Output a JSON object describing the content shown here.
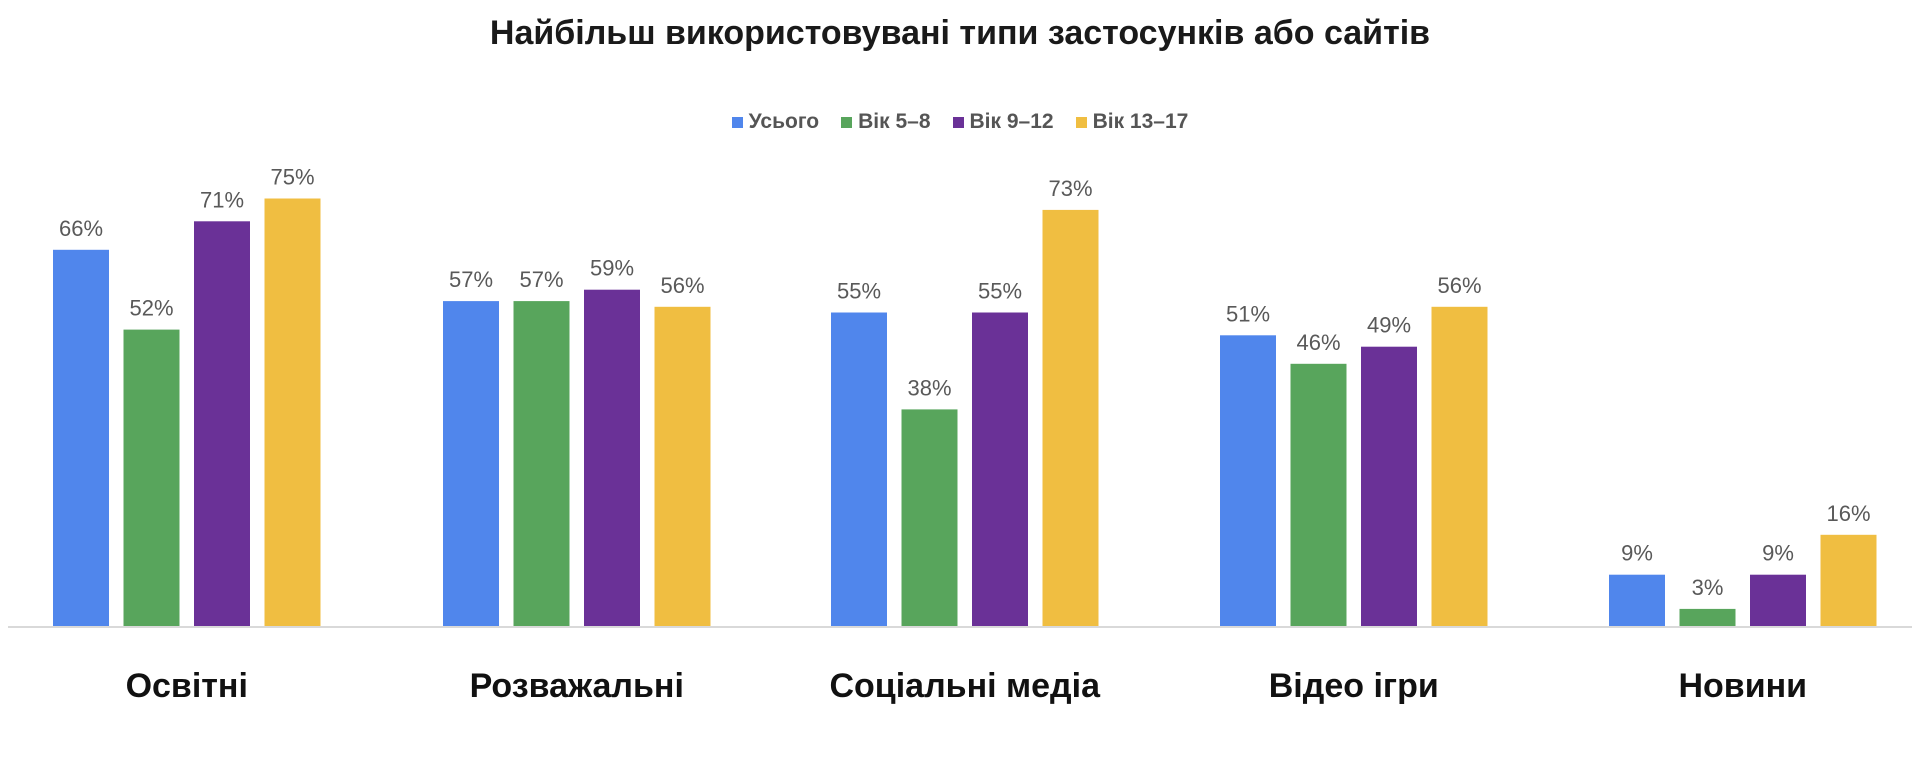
{
  "chart_data": {
    "type": "bar",
    "title": "Найбільш використовувані типи застосунків або сайтів",
    "categories": [
      "Освітні",
      "Розважальні",
      "Соціальні медіа",
      "Відео ігри",
      "Новини"
    ],
    "series": [
      {
        "name": "Усього",
        "color": "#5086EC",
        "values": [
          66,
          57,
          55,
          51,
          9
        ]
      },
      {
        "name": "Вік 5–8",
        "color": "#58A55C",
        "values": [
          52,
          57,
          38,
          46,
          3
        ]
      },
      {
        "name": "Вік 9–12",
        "color": "#6A3197",
        "values": [
          71,
          59,
          55,
          49,
          9
        ]
      },
      {
        "name": "Вік 13–17",
        "color": "#F0BE41",
        "values": [
          75,
          56,
          73,
          56,
          16
        ]
      }
    ],
    "value_suffix": "%",
    "ylim": [
      0,
      80
    ],
    "legend_position": "top-center",
    "grid": false
  }
}
